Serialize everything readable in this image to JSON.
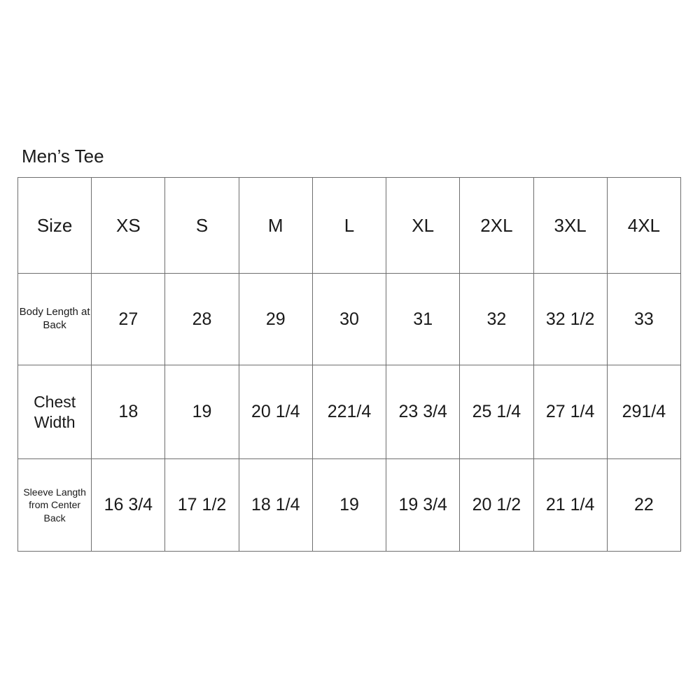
{
  "title": "Men’s Tee",
  "colors": {
    "background": "#ffffff",
    "grid_border": "#6e6e6e",
    "text": "#1a1a1a"
  },
  "chart_data": {
    "type": "table",
    "title": "Men’s Tee",
    "columns": [
      "Size",
      "XS",
      "S",
      "M",
      "L",
      "XL",
      "2XL",
      "3XL",
      "4XL"
    ],
    "rows": [
      [
        "Body Length at Back",
        "27",
        "28",
        "29",
        "30",
        "31",
        "32",
        "32 1/2",
        "33"
      ],
      [
        "Chest Width",
        "18",
        "19",
        "20 1/4",
        "221/4",
        "23 3/4",
        "25 1/4",
        "27 1/4",
        "291/4"
      ],
      [
        "Sleeve Langth from Center Back",
        "16 3/4",
        "17 1/2",
        "18 1/4",
        "19",
        "19 3/4",
        "20 1/2",
        "21 1/4",
        "22"
      ]
    ],
    "layout": {
      "grid": true,
      "header_position": "top-row",
      "label_column": "left"
    }
  }
}
